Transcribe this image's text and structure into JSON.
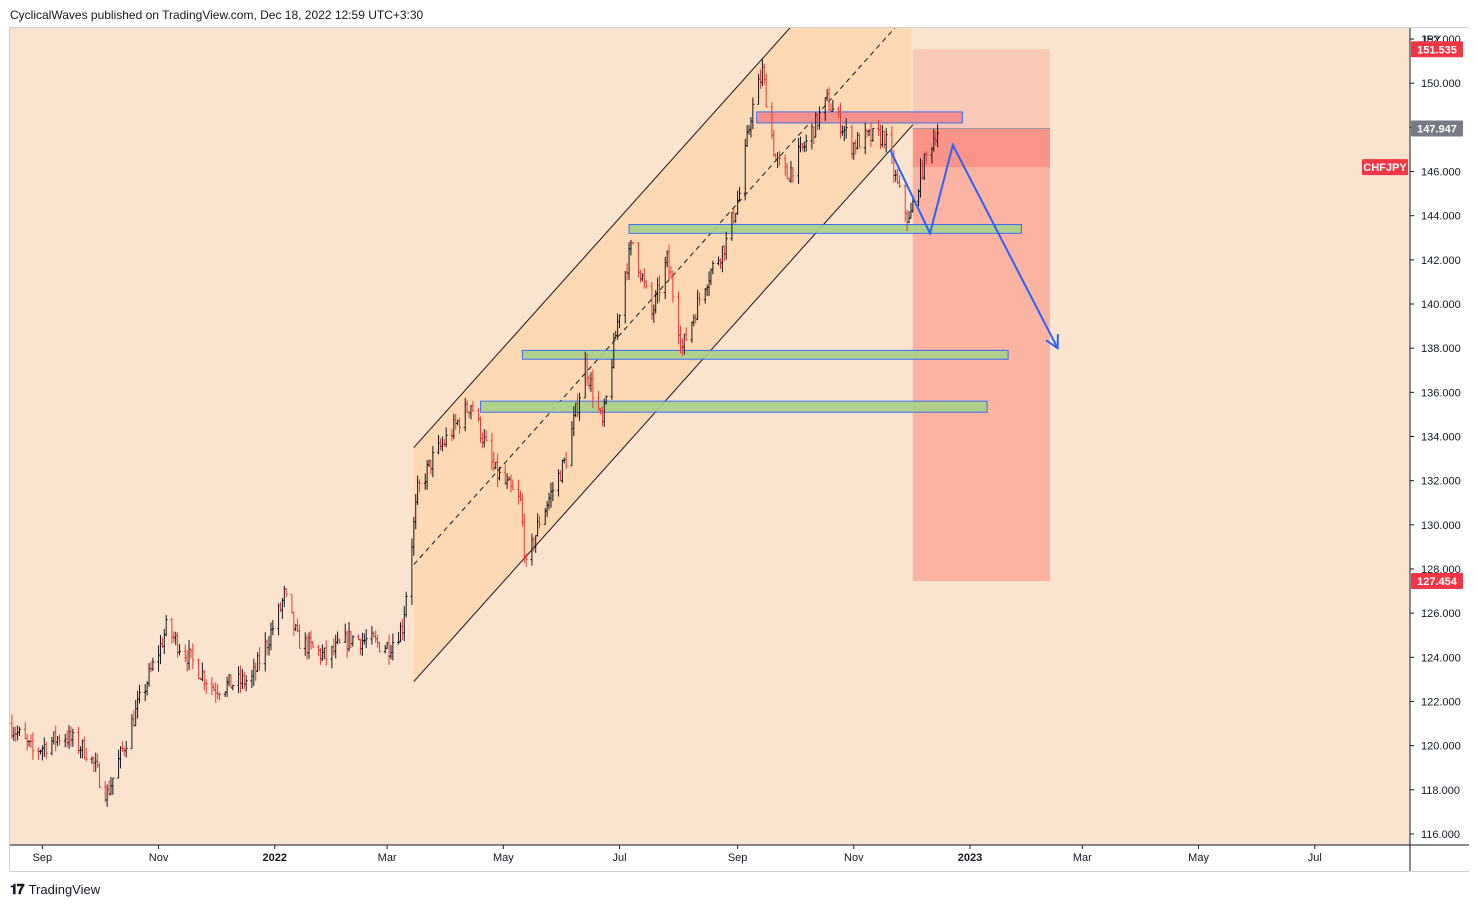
{
  "header": {
    "text": "CyclicalWaves published on TradingView.com, Dec 18, 2022 12:59 UTC+3:30"
  },
  "footer": {
    "brand": "TradingView"
  },
  "colors": {
    "background": "#fbe4cf",
    "channel_fill": "#fbd7ad",
    "bull": "#131722",
    "bear": "#e53935",
    "target_zone": "#fdaa9a",
    "stop_zone": "#fbc2b2",
    "arrow": "#2962ff",
    "red_box": "#f48a8a",
    "green_box": "#a8d08a",
    "price_label_red": "#f23645",
    "price_label_gray": "#787b86"
  },
  "chart_data": {
    "type": "candlestick",
    "symbol_label": "CHFJPY",
    "currency": "JPY",
    "ylim": [
      115.5,
      152.5
    ],
    "yticks": [
      152.0,
      150.0,
      148.0,
      146.0,
      144.0,
      142.0,
      140.0,
      138.0,
      136.0,
      134.0,
      132.0,
      130.0,
      128.0,
      126.0,
      124.0,
      122.0,
      120.0,
      118.0,
      116.0
    ],
    "ytick_labels": [
      "152.000",
      "150.000",
      "148.000",
      "146.000",
      "144.000",
      "142.000",
      "140.000",
      "138.000",
      "136.000",
      "134.000",
      "132.000",
      "130.000",
      "128.000",
      "126.000",
      "124.000",
      "122.000",
      "120.000",
      "118.000",
      "116.000"
    ],
    "xlim": [
      "2021-08-15",
      "2023-08-20"
    ],
    "xticks": [
      {
        "date": "2021-09-01",
        "label": "Sep",
        "bold": false
      },
      {
        "date": "2021-11-01",
        "label": "Nov",
        "bold": false
      },
      {
        "date": "2022-01-01",
        "label": "2022",
        "bold": true
      },
      {
        "date": "2022-03-01",
        "label": "Mar",
        "bold": false
      },
      {
        "date": "2022-05-01",
        "label": "May",
        "bold": false
      },
      {
        "date": "2022-07-01",
        "label": "Jul",
        "bold": false
      },
      {
        "date": "2022-09-01",
        "label": "Sep",
        "bold": false
      },
      {
        "date": "2022-11-01",
        "label": "Nov",
        "bold": false
      },
      {
        "date": "2023-01-01",
        "label": "2023",
        "bold": true
      },
      {
        "date": "2023-03-01",
        "label": "Mar",
        "bold": false
      },
      {
        "date": "2023-05-01",
        "label": "May",
        "bold": false
      },
      {
        "date": "2023-07-01",
        "label": "Jul",
        "bold": false
      }
    ],
    "price_path": [
      [
        "2021-08-15",
        121.0
      ],
      [
        "2021-08-27",
        119.7
      ],
      [
        "2021-09-12",
        120.5
      ],
      [
        "2021-09-25",
        119.7
      ],
      [
        "2021-10-05",
        117.8
      ],
      [
        "2021-10-22",
        122.0
      ],
      [
        "2021-11-02",
        124.5
      ],
      [
        "2021-11-05",
        125.3
      ],
      [
        "2021-11-17",
        124.0
      ],
      [
        "2021-11-30",
        122.6
      ],
      [
        "2021-12-20",
        123.0
      ],
      [
        "2022-01-04",
        126.2
      ],
      [
        "2022-01-06",
        126.8
      ],
      [
        "2022-01-13",
        124.8
      ],
      [
        "2022-01-28",
        124.0
      ],
      [
        "2022-02-10",
        124.9
      ],
      [
        "2022-03-02",
        124.5
      ],
      [
        "2022-03-09",
        125.4
      ],
      [
        "2022-03-17",
        131.5
      ],
      [
        "2022-03-25",
        133.0
      ],
      [
        "2022-04-14",
        135.5
      ],
      [
        "2022-04-26",
        132.5
      ],
      [
        "2022-05-10",
        131.0
      ],
      [
        "2022-05-13",
        128.0
      ],
      [
        "2022-05-20",
        130.2
      ],
      [
        "2022-06-03",
        133.0
      ],
      [
        "2022-06-09",
        135.5
      ],
      [
        "2022-06-13",
        137.3
      ],
      [
        "2022-06-22",
        134.5
      ],
      [
        "2022-06-28",
        138.0
      ],
      [
        "2022-07-04",
        141.5
      ],
      [
        "2022-07-08",
        142.8
      ],
      [
        "2022-07-18",
        139.5
      ],
      [
        "2022-07-26",
        142.0
      ],
      [
        "2022-08-03",
        138.0
      ],
      [
        "2022-08-15",
        141.0
      ],
      [
        "2022-08-26",
        142.8
      ],
      [
        "2022-09-02",
        145.0
      ],
      [
        "2022-09-08",
        148.6
      ],
      [
        "2022-09-14",
        150.5
      ],
      [
        "2022-09-21",
        146.5
      ],
      [
        "2022-09-27",
        145.8
      ],
      [
        "2022-10-07",
        147.3
      ],
      [
        "2022-10-18",
        149.2
      ],
      [
        "2022-10-25",
        148.2
      ],
      [
        "2022-10-31",
        147.2
      ],
      [
        "2022-11-07",
        147.5
      ],
      [
        "2022-11-17",
        147.6
      ],
      [
        "2022-11-25",
        145.0
      ],
      [
        "2022-11-30",
        143.7
      ],
      [
        "2022-12-06",
        145.9
      ],
      [
        "2022-12-14",
        147.8
      ],
      [
        "2022-12-16",
        147.9
      ]
    ],
    "channel": {
      "lower": [
        [
          "2022-03-15",
          122.9
        ],
        [
          "2022-12-06",
          148.5
        ]
      ],
      "middle": [
        [
          "2022-03-15",
          128.2
        ],
        [
          "2022-12-06",
          153.8
        ]
      ],
      "upper": [
        [
          "2022-03-15",
          133.5
        ],
        [
          "2022-12-06",
          159.1
        ]
      ],
      "fill_until": "2022-12-01"
    },
    "zones": [
      {
        "name": "resistance",
        "from": "2022-09-11",
        "to": "2022-12-28",
        "top": 148.7,
        "bottom": 148.2,
        "color": "red"
      },
      {
        "name": "support-144",
        "from": "2022-07-06",
        "to": "2023-01-28",
        "top": 143.6,
        "bottom": 143.2,
        "color": "green"
      },
      {
        "name": "support-138",
        "from": "2022-05-11",
        "to": "2023-01-21",
        "top": 137.9,
        "bottom": 137.5,
        "color": "green"
      },
      {
        "name": "support-135",
        "from": "2022-04-19",
        "to": "2023-01-10",
        "top": 135.6,
        "bottom": 135.1,
        "color": "green"
      }
    ],
    "position": {
      "type": "short",
      "from": "2022-12-02",
      "to": "2023-02-12",
      "entry": 147.947,
      "stop": 151.535,
      "target": 127.454,
      "stop_extra": 146.2
    },
    "forecast_path": [
      [
        "2022-11-20",
        147.0
      ],
      [
        "2022-12-11",
        143.2
      ],
      [
        "2022-12-23",
        147.2
      ],
      [
        "2023-02-16",
        138.0
      ]
    ],
    "price_labels": [
      {
        "value": 151.535,
        "text": "151.535",
        "color": "red"
      },
      {
        "value": 147.947,
        "text": "147.947",
        "color": "gray"
      },
      {
        "value": 146.2,
        "text": "CHFJPY",
        "color": "red",
        "inset": true
      },
      {
        "value": 127.454,
        "text": "127.454",
        "color": "red"
      }
    ]
  }
}
